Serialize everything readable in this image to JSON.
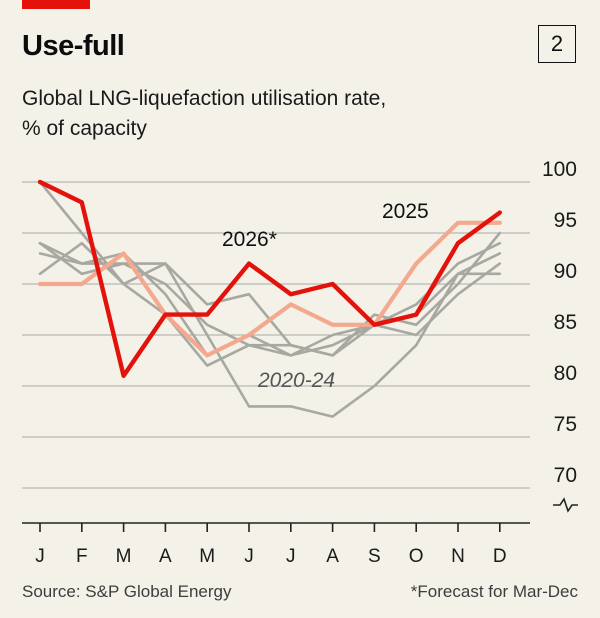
{
  "header": {
    "title": "Use-full",
    "badge": "2",
    "subtitle_line1": "Global LNG-liquefaction utilisation rate,",
    "subtitle_line2": "% of capacity"
  },
  "footer": {
    "source": "Source: S&P Global Energy",
    "note": "*Forecast for Mar-Dec"
  },
  "colors": {
    "accent": "#e3120b",
    "series_2026": "#e3120b",
    "series_2025": "#f4a88e",
    "series_history": "#a8a8a2",
    "grid": "#a9a9a9",
    "background": "#f3f1e8"
  },
  "chart_data": {
    "type": "line",
    "categories": [
      "J",
      "F",
      "M",
      "A",
      "M",
      "J",
      "J",
      "A",
      "S",
      "O",
      "N",
      "D"
    ],
    "ylim": [
      70,
      100
    ],
    "y_ticks": [
      "100",
      "95",
      "90",
      "85",
      "80",
      "75",
      "70"
    ],
    "y_axis_break": true,
    "grid": true,
    "annotations": {
      "label_2026": "2026*",
      "label_2025": "2025",
      "label_history": "2020-24"
    },
    "series": [
      {
        "name": "2026*",
        "values": [
          100,
          98,
          81,
          87,
          87,
          92,
          89,
          90,
          86,
          87,
          94,
          97
        ]
      },
      {
        "name": "2025",
        "values": [
          90,
          90,
          93,
          87,
          83,
          85,
          88,
          86,
          86,
          92,
          96,
          96
        ]
      },
      {
        "name": "2020-24",
        "values": [
          94,
          92,
          92,
          92,
          85,
          78,
          78,
          77,
          80,
          84,
          91,
          91
        ]
      },
      {
        "name": "2020-24",
        "values": [
          91,
          94,
          90,
          92,
          88,
          89,
          84,
          83,
          87,
          86,
          90,
          95
        ]
      },
      {
        "name": "2020-24",
        "values": [
          100,
          95,
          90,
          87,
          82,
          84,
          83,
          84,
          86,
          85,
          89,
          92
        ]
      },
      {
        "name": "2020-24",
        "values": [
          93,
          92,
          93,
          89,
          83,
          85,
          83,
          85,
          86,
          87,
          91,
          93
        ]
      },
      {
        "name": "2020-24",
        "values": [
          94,
          91,
          92,
          90,
          86,
          84,
          84,
          83,
          86,
          88,
          92,
          94
        ]
      }
    ]
  }
}
